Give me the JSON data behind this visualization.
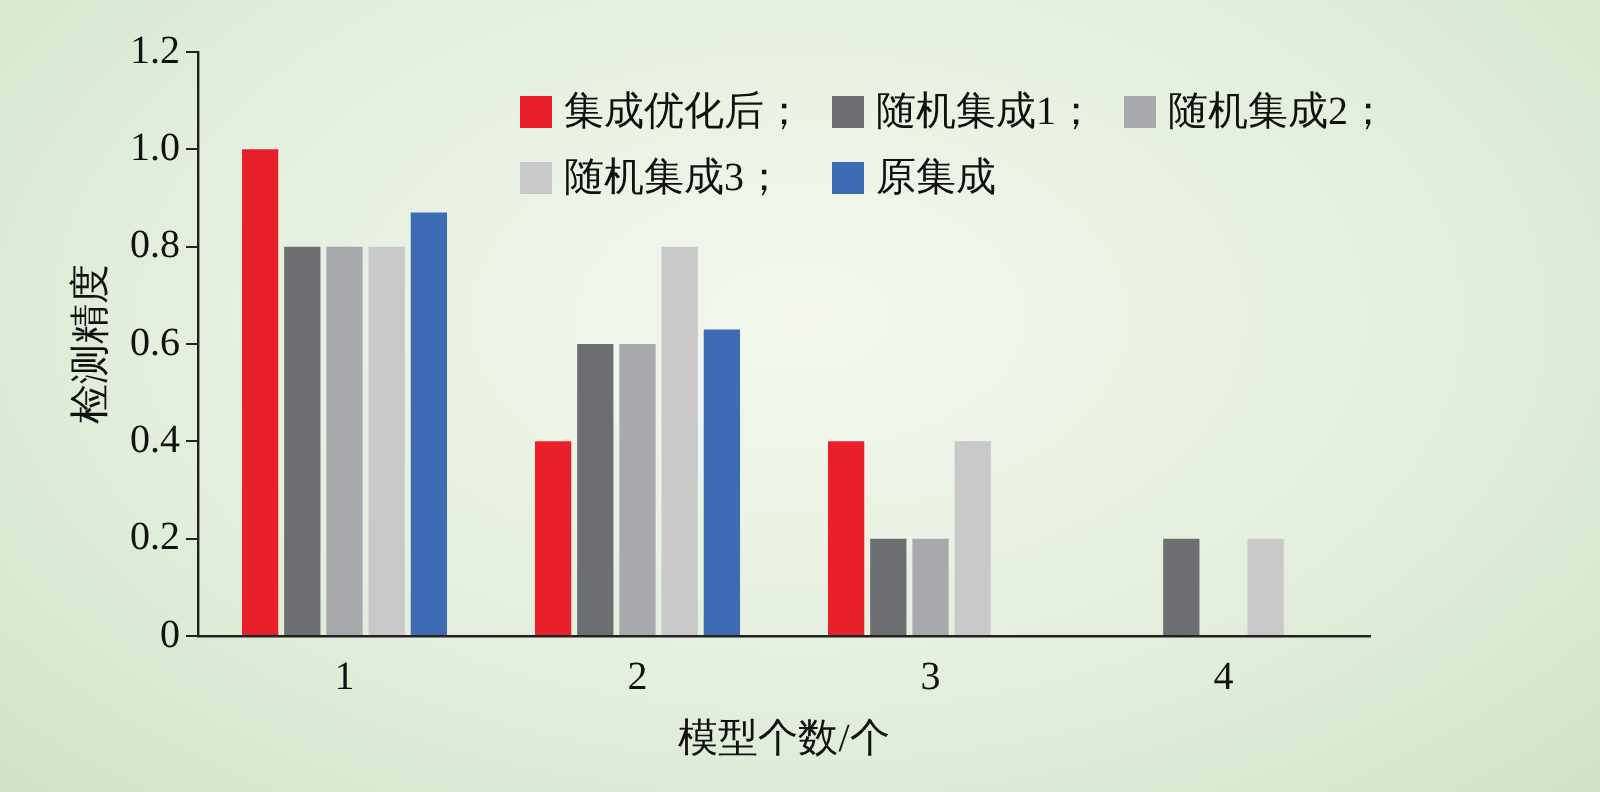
{
  "chart_data": {
    "type": "bar",
    "xlabel": "模型个数/个",
    "ylabel": "检测精度",
    "categories": [
      "1",
      "2",
      "3",
      "4"
    ],
    "series": [
      {
        "name": "集成优化后；",
        "color": "#e8202a",
        "values": [
          1.0,
          0.4,
          0.4,
          null
        ]
      },
      {
        "name": "随机集成1；",
        "color": "#6d6e71",
        "values": [
          0.8,
          0.6,
          0.2,
          0.2
        ]
      },
      {
        "name": "随机集成2；",
        "color": "#a7a9ac",
        "values": [
          0.8,
          0.6,
          0.2,
          null
        ]
      },
      {
        "name": "随机集成3；",
        "color": "#c9c9c9",
        "values": [
          0.8,
          0.8,
          0.4,
          0.2
        ]
      },
      {
        "name": "原集成",
        "color": "#3d6cb5",
        "values": [
          0.87,
          0.63,
          null,
          null
        ]
      }
    ],
    "ylim": [
      0,
      1.2
    ],
    "yticks": [
      0,
      {
        "value": 0.2,
        "label": "0.2"
      },
      {
        "value": 0.4,
        "label": "0.4"
      },
      {
        "value": 0.6,
        "label": "0.6"
      },
      {
        "value": 0.8,
        "label": "0.8"
      },
      {
        "value": 1,
        "label": "1.0"
      },
      {
        "value": 1.2,
        "label": "1.2"
      }
    ],
    "grid": false,
    "legend": "top right"
  }
}
